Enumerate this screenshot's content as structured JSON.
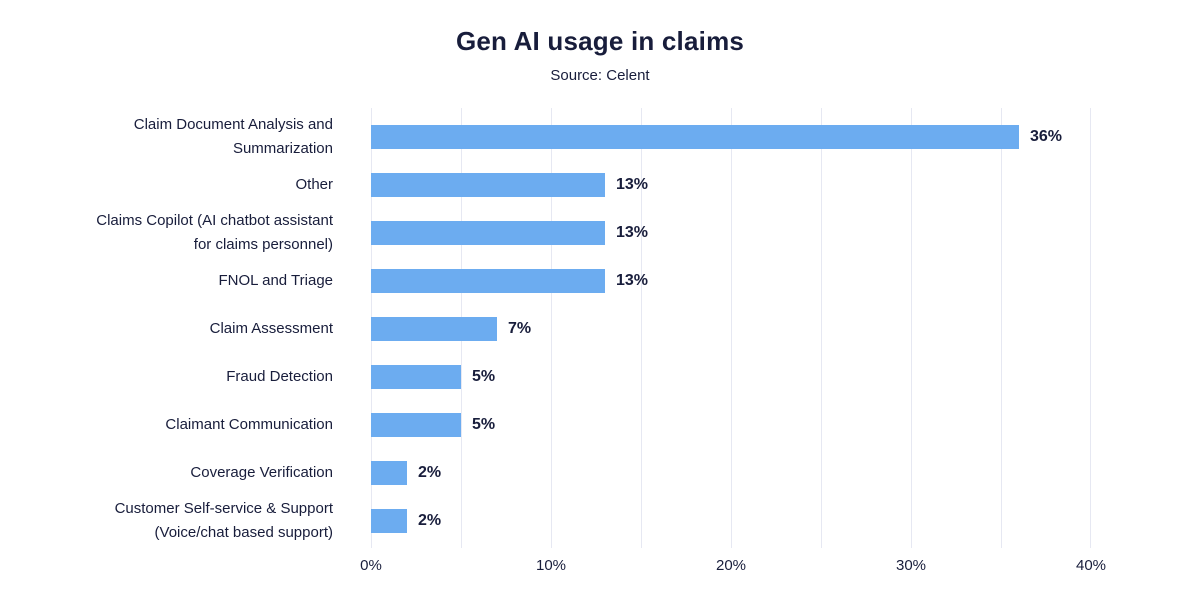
{
  "chart_data": {
    "type": "bar",
    "orientation": "horizontal",
    "title": "Gen AI usage in claims",
    "subtitle": "Source: Celent",
    "categories": [
      "Claim Document Analysis and Summarization",
      "Other",
      "Claims Copilot (AI chatbot assistant for claims personnel)",
      "FNOL and Triage",
      "Claim Assessment",
      "Fraud Detection",
      "Claimant Communication",
      "Coverage Verification",
      "Customer Self-service & Support (Voice/chat based support)"
    ],
    "values": [
      36,
      13,
      13,
      13,
      7,
      5,
      5,
      2,
      2
    ],
    "value_labels": [
      "36%",
      "13%",
      "13%",
      "13%",
      "7%",
      "5%",
      "5%",
      "2%",
      "2%"
    ],
    "xlabel": "",
    "ylabel": "",
    "xlim": [
      0,
      40
    ],
    "x_tick_labels": [
      "0%",
      "10%",
      "20%",
      "30%",
      "40%"
    ],
    "gridline_step": 5,
    "grid": "vertical-only",
    "legend": "none",
    "colors": {
      "bar": "#6cacf0",
      "gridline": "#e6e8f2",
      "text": "#181d3b",
      "background": "#ffffff"
    }
  }
}
